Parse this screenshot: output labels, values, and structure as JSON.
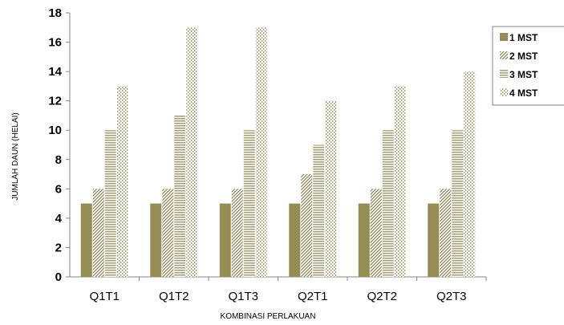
{
  "chart_data": {
    "type": "bar",
    "xlabel": "KOMBINASI PERLAKUAN",
    "ylabel": "JUMLAH DAUN (HELAI)",
    "ylim": [
      0,
      18
    ],
    "yticks": [
      0,
      2,
      4,
      6,
      8,
      10,
      12,
      14,
      16,
      18
    ],
    "categories": [
      "Q1T1",
      "Q1T2",
      "Q1T3",
      "Q2T1",
      "Q2T2",
      "Q2T3"
    ],
    "grid": false,
    "legend_position": "right",
    "series": [
      {
        "name": "1 MST",
        "values": [
          5,
          5,
          5,
          5,
          5,
          5
        ],
        "color": "#968c56",
        "pattern": "solid"
      },
      {
        "name": "2 MST",
        "values": [
          6,
          6,
          6,
          7,
          6,
          6
        ],
        "color": "#8a8255",
        "pattern": "diagonal"
      },
      {
        "name": "3 MST",
        "values": [
          10,
          11,
          10,
          9,
          10,
          10
        ],
        "color": "#a9a27c",
        "pattern": "horizontal"
      },
      {
        "name": "4 MST",
        "values": [
          13,
          17,
          17,
          12,
          13,
          14
        ],
        "color": "#a09868",
        "pattern": "dashed-vertical"
      }
    ]
  }
}
